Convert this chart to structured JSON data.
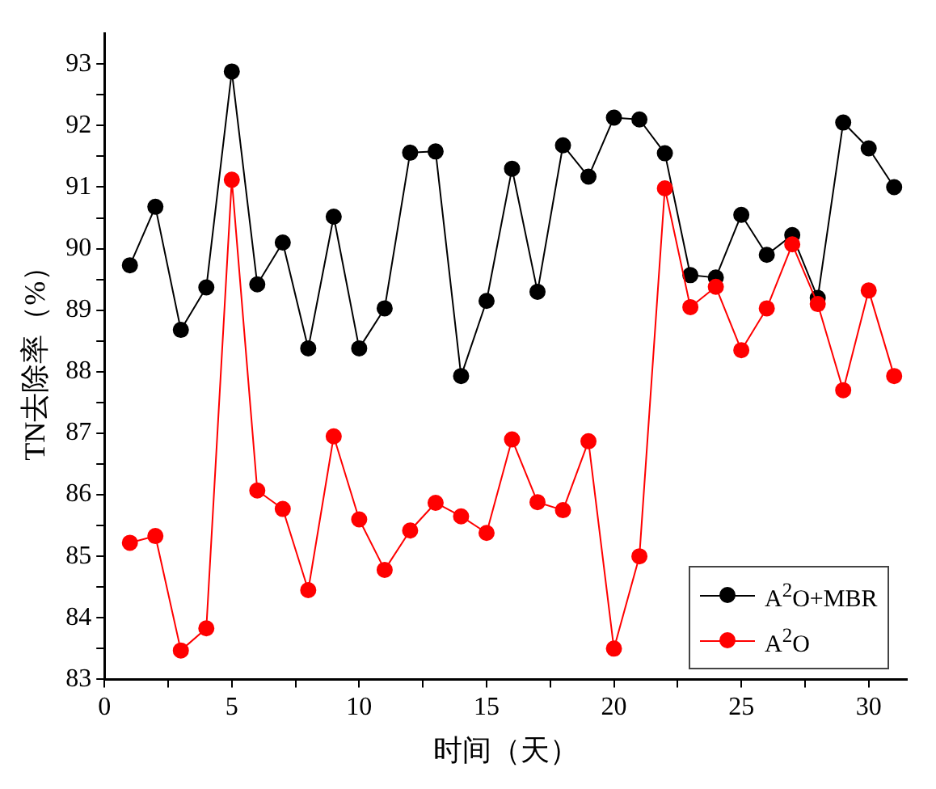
{
  "chart_data": {
    "type": "line",
    "xlabel": "时间（天）",
    "ylabel": "TN去除率（%）",
    "x": [
      1,
      2,
      3,
      4,
      5,
      6,
      7,
      8,
      9,
      10,
      11,
      12,
      13,
      14,
      15,
      16,
      17,
      18,
      19,
      20,
      21,
      22,
      23,
      24,
      25,
      26,
      27,
      28,
      29,
      30,
      31
    ],
    "series": [
      {
        "name": "A$^{2}$O+MBR",
        "color": "#000000",
        "values": [
          89.73,
          90.68,
          88.68,
          89.37,
          92.88,
          89.42,
          90.1,
          88.38,
          90.52,
          88.38,
          89.03,
          91.56,
          91.58,
          87.93,
          89.15,
          91.3,
          89.3,
          91.68,
          91.17,
          92.13,
          92.1,
          91.55,
          89.57,
          89.53,
          90.55,
          89.9,
          90.22,
          89.2,
          92.05,
          91.63,
          91.0
        ]
      },
      {
        "name": "A$^{2}$O",
        "color": "#ff0000",
        "values": [
          85.22,
          85.33,
          83.47,
          83.83,
          91.12,
          86.07,
          85.77,
          84.45,
          86.95,
          85.6,
          84.78,
          85.42,
          85.87,
          85.65,
          85.38,
          86.9,
          85.88,
          85.75,
          86.87,
          83.5,
          85.0,
          90.98,
          89.05,
          89.38,
          88.35,
          89.03,
          90.07,
          89.1,
          87.7,
          89.32,
          87.93
        ]
      }
    ],
    "xlim": [
      0,
      31.5
    ],
    "xticks": [
      0,
      {
        "value": 2.5,
        "label": null
      },
      5,
      {
        "value": 7.5,
        "label": null
      },
      10,
      {
        "value": 12.5,
        "label": null
      },
      15,
      {
        "value": 17.5,
        "label": null
      },
      20,
      {
        "value": 22.5,
        "label": null
      },
      25,
      {
        "value": 27.5,
        "label": null
      },
      30
    ],
    "ylim": [
      83,
      93.5
    ],
    "yticks": [
      83,
      {
        "value": 83.5,
        "label": null
      },
      84,
      {
        "value": 84.5,
        "label": null
      },
      85,
      {
        "value": 85.5,
        "label": null
      },
      86,
      {
        "value": 86.5,
        "label": null
      },
      87,
      {
        "value": 87.5,
        "label": null
      },
      88,
      {
        "value": 88.5,
        "label": null
      },
      89,
      {
        "value": 89.5,
        "label": null
      },
      90,
      {
        "value": 90.5,
        "label": null
      },
      91,
      {
        "value": 91.5,
        "label": null
      },
      92,
      {
        "value": 92.5,
        "label": null
      },
      93
    ],
    "grid": false,
    "legend": "bottom right",
    "marker": "circle",
    "line_style": "solid"
  }
}
